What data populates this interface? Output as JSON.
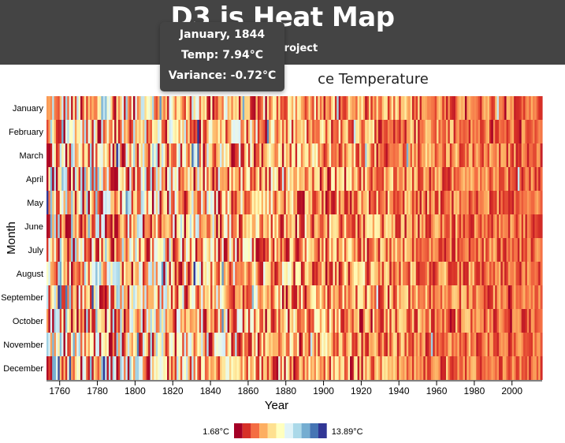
{
  "header": {
    "title": "D3 js Heat Map",
    "subtitle": "p(⚠) Project"
  },
  "chart_title_visible": "ce Temperature",
  "tooltip": {
    "line1": "January, 1844",
    "line2": "Temp: 7.94°C",
    "line3": "Variance: -0.72°C"
  },
  "chart_data": {
    "type": "heatmap",
    "xlabel": "Year",
    "ylabel": "Month",
    "x_range": [
      1753,
      2015
    ],
    "x_ticks": [
      1760,
      1780,
      1800,
      1820,
      1840,
      1860,
      1880,
      1900,
      1920,
      1940,
      1960,
      1980,
      2000
    ],
    "y_categories": [
      "January",
      "February",
      "March",
      "April",
      "May",
      "June",
      "July",
      "August",
      "September",
      "October",
      "November",
      "December"
    ],
    "legend": {
      "min_label": "1.68°C",
      "max_label": "13.89°C",
      "colors": [
        "#a50026",
        "#d73027",
        "#f46d43",
        "#fdae61",
        "#fee090",
        "#ffffbf",
        "#e0f3f8",
        "#abd9e9",
        "#74add1",
        "#4575b4",
        "#313695"
      ]
    }
  }
}
